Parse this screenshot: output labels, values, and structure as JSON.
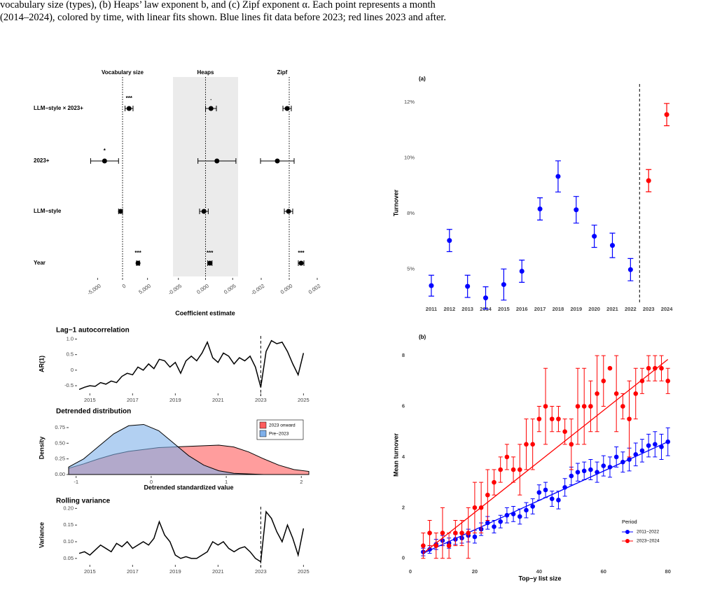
{
  "caption": [
    "vocabulary size (types), (b) Heaps’ law exponent b, and (c) Zipf exponent α. Each point represents a month",
    "(2014–2024), colored by time, with linear fits shown. Blue lines fit data before 2023; red lines 2023 and after."
  ],
  "chart_data": [
    {
      "type": "forest",
      "categories": [
        "LLM−style × 2023+",
        "2023+",
        "LLM−style",
        "Year"
      ],
      "xlabel": "Coefficient estimate",
      "panels": [
        {
          "title": "Vocabulary size",
          "shaded": false,
          "xlim": [
            -8000,
            8000
          ],
          "xticks": [
            {
              "value": -5000,
              "label": "-5,000"
            },
            0,
            {
              "value": 5000,
              "label": "5,000"
            }
          ],
          "values": [
            1300,
            -3600,
            -400,
            3100
          ],
          "errors": [
            800,
            2800,
            400,
            300
          ],
          "stars": [
            "***",
            "*",
            null,
            "***"
          ]
        },
        {
          "title": "Heaps",
          "shaded": true,
          "xlim": [
            -0.006,
            0.006
          ],
          "xticks": [
            -0.005,
            {
              "value": 0,
              "label": "0.000"
            },
            0.005
          ],
          "values": [
            0.001,
            0.0021,
            -0.0003,
            0.0008
          ],
          "errors": [
            0.001,
            0.0035,
            0.0008,
            0.0004
          ],
          "stars": [
            ".",
            null,
            null,
            "***"
          ]
        },
        {
          "title": "Zipf",
          "shaded": false,
          "xlim": [
            -0.0025,
            0.0015
          ],
          "xticks": [
            -0.002,
            {
              "value": 0,
              "label": "0.000"
            },
            0.002
          ],
          "values": [
            -0.00015,
            -0.00085,
            -5e-05,
            0.00085
          ],
          "errors": [
            0.0003,
            0.0012,
            0.0003,
            0.0002
          ],
          "stars": [
            null,
            null,
            null,
            "***"
          ]
        }
      ]
    },
    {
      "type": "line",
      "title": "Lag−1 autocorrelation",
      "ylabel": "AR(1)",
      "color": "#000000",
      "vline": 2023,
      "x": [
        2014.5,
        2014.75,
        2015,
        2015.25,
        2015.5,
        2015.75,
        2016,
        2016.25,
        2016.5,
        2016.75,
        2017,
        2017.25,
        2017.5,
        2017.75,
        2018,
        2018.25,
        2018.5,
        2018.75,
        2019,
        2019.25,
        2019.5,
        2019.75,
        2020,
        2020.25,
        2020.5,
        2020.75,
        2021,
        2021.25,
        2021.5,
        2021.75,
        2022,
        2022.25,
        2022.5,
        2022.75,
        2023,
        2023.25,
        2023.5,
        2023.75,
        2024,
        2024.25,
        2024.5,
        2024.75,
        2025
      ],
      "values": [
        -0.62,
        -0.55,
        -0.5,
        -0.52,
        -0.4,
        -0.45,
        -0.35,
        -0.4,
        -0.2,
        -0.1,
        -0.15,
        0.1,
        0,
        0.2,
        0.05,
        0.35,
        0.3,
        0.1,
        0.25,
        -0.1,
        0.3,
        0.45,
        0.3,
        0.55,
        0.9,
        0.4,
        0.25,
        0.55,
        0.45,
        0.2,
        0.4,
        0.3,
        0.45,
        0.1,
        -0.55,
        0.6,
        0.95,
        0.85,
        0.9,
        0.6,
        0.2,
        -0.15,
        0.55
      ],
      "xlim": [
        2014.4,
        2025.25
      ],
      "xticks": [
        2015,
        2017,
        2019,
        2021,
        2023,
        2025
      ],
      "ylim": [
        -0.7,
        1.1
      ],
      "yticks": [
        -0.5,
        0,
        0.5,
        {
          "value": 1,
          "label": "1.0"
        }
      ]
    },
    {
      "type": "density",
      "title": "Detrended distribution",
      "ylabel": "Density",
      "xlabel": "Detrended standardized value",
      "x": [
        -1.1,
        -0.9,
        -0.7,
        -0.5,
        -0.3,
        -0.1,
        0.1,
        0.3,
        0.5,
        0.7,
        0.9,
        1.1,
        1.3,
        1.5,
        1.7,
        1.9,
        2.1
      ],
      "series": [
        {
          "name": "2023 onward",
          "color": "#ff5c5c",
          "values": [
            0.1,
            0.17,
            0.25,
            0.32,
            0.37,
            0.4,
            0.43,
            0.44,
            0.45,
            0.46,
            0.47,
            0.44,
            0.36,
            0.25,
            0.15,
            0.08,
            0.05
          ]
        },
        {
          "name": "Pre−2023",
          "color": "#7fb0ea",
          "values": [
            0.12,
            0.25,
            0.45,
            0.65,
            0.78,
            0.8,
            0.7,
            0.5,
            0.3,
            0.15,
            0.06,
            0.02,
            0.01,
            0,
            0,
            0,
            0
          ]
        }
      ],
      "xlim": [
        -1.1,
        2.1
      ],
      "xticks": [
        -1,
        0,
        1,
        2
      ],
      "ylim": [
        0,
        0.85
      ],
      "yticks": [
        {
          "value": 0,
          "label": "0.00"
        },
        0.25,
        {
          "value": 0.5,
          "label": "0.50"
        },
        0.75
      ]
    },
    {
      "type": "line",
      "title": "Rolling variance",
      "ylabel": "Variance",
      "color": "#000000",
      "vline": 2023,
      "x": [
        2014.5,
        2014.75,
        2015,
        2015.25,
        2015.5,
        2015.75,
        2016,
        2016.25,
        2016.5,
        2016.75,
        2017,
        2017.25,
        2017.5,
        2017.75,
        2018,
        2018.25,
        2018.5,
        2018.75,
        2019,
        2019.25,
        2019.5,
        2019.75,
        2020,
        2020.25,
        2020.5,
        2020.75,
        2021,
        2021.25,
        2021.5,
        2021.75,
        2022,
        2022.25,
        2022.5,
        2022.75,
        2023,
        2023.25,
        2023.5,
        2023.75,
        2024,
        2024.25,
        2024.5,
        2024.75,
        2025
      ],
      "values": [
        0.065,
        0.07,
        0.06,
        0.075,
        0.09,
        0.08,
        0.07,
        0.095,
        0.085,
        0.1,
        0.08,
        0.09,
        0.1,
        0.09,
        0.11,
        0.16,
        0.12,
        0.1,
        0.06,
        0.05,
        0.055,
        0.05,
        0.05,
        0.06,
        0.07,
        0.1,
        0.09,
        0.1,
        0.08,
        0.07,
        0.08,
        0.085,
        0.07,
        0.05,
        0.04,
        0.19,
        0.17,
        0.13,
        0.1,
        0.15,
        0.11,
        0.06,
        0.14
      ],
      "xlim": [
        2014.4,
        2025.25
      ],
      "xticks": [
        2015,
        2017,
        2019,
        2021,
        2023,
        2025
      ],
      "ylim": [
        0.035,
        0.205
      ],
      "yticks": [
        0.05,
        {
          "value": 0.1,
          "label": "0.10"
        },
        0.15,
        {
          "value": 0.2,
          "label": "0.20"
        }
      ]
    },
    {
      "type": "errorbar",
      "title": "(a)",
      "ylabel": "Turnover",
      "categories": [
        "2011",
        "2012",
        "2013",
        "2014",
        "2015",
        "2016",
        "2017",
        "2018",
        "2019",
        "2020",
        "2021",
        "2022",
        "2023",
        "2024"
      ],
      "values": [
        4.25,
        6.28,
        4.22,
        3.7,
        4.3,
        4.9,
        7.7,
        9.16,
        7.66,
        6.47,
        6.06,
        4.97,
        8.97,
        11.94
      ],
      "errors": [
        0.47,
        0.5,
        0.5,
        0.5,
        0.7,
        0.5,
        0.5,
        0.7,
        0.6,
        0.5,
        0.55,
        0.5,
        0.5,
        0.5
      ],
      "colors": [
        "#0000ff",
        "#0000ff",
        "#0000ff",
        "#0000ff",
        "#0000ff",
        "#0000ff",
        "#0000ff",
        "#0000ff",
        "#0000ff",
        "#0000ff",
        "#0000ff",
        "#0000ff",
        "#ff0000",
        "#ff0000"
      ],
      "ylim": [
        3.5,
        13
      ],
      "yticks": [
        {
          "value": 5,
          "label": "5%"
        },
        {
          "value": 7.5,
          "label": "8%"
        },
        {
          "value": 10,
          "label": "10%"
        },
        {
          "value": 12.5,
          "label": "12%"
        }
      ]
    },
    {
      "type": "scatter",
      "title": "(b)",
      "ylabel": "Mean turnover",
      "xlabel": "Top−y list size",
      "legend_title": "Period",
      "x": [
        4,
        6,
        8,
        10,
        12,
        14,
        16,
        18,
        20,
        22,
        24,
        26,
        28,
        30,
        32,
        34,
        36,
        38,
        40,
        42,
        44,
        46,
        48,
        50,
        52,
        54,
        56,
        58,
        60,
        62,
        64,
        66,
        68,
        70,
        72,
        74,
        76,
        78,
        80
      ],
      "fit_x": [
        4,
        80
      ],
      "series": [
        {
          "name": "2011–2022",
          "color": "#0000ff",
          "fit": [
            0.2,
            4.6
          ],
          "values": [
            0.25,
            0.35,
            0.55,
            0.7,
            0.6,
            0.75,
            0.8,
            0.9,
            0.85,
            1.15,
            1.4,
            1.25,
            1.45,
            1.7,
            1.75,
            1.65,
            1.9,
            2.05,
            2.6,
            2.7,
            2.35,
            2.3,
            2.8,
            3.25,
            3.4,
            3.45,
            3.5,
            3.4,
            3.65,
            3.6,
            4.0,
            3.8,
            3.9,
            4.1,
            4.25,
            4.45,
            4.5,
            4.4,
            4.6
          ],
          "errors": [
            0.15,
            0.15,
            0.2,
            0.2,
            0.2,
            0.2,
            0.2,
            0.25,
            0.25,
            0.25,
            0.25,
            0.25,
            0.25,
            0.3,
            0.3,
            0.3,
            0.3,
            0.3,
            0.3,
            0.3,
            0.3,
            0.35,
            0.35,
            0.35,
            0.35,
            0.35,
            0.4,
            0.4,
            0.4,
            0.4,
            0.4,
            0.4,
            0.45,
            0.45,
            0.45,
            0.45,
            0.5,
            0.5,
            0.55
          ]
        },
        {
          "name": "2023–2024",
          "color": "#ff0000",
          "fit": [
            0.2,
            7.85
          ],
          "values": [
            0.5,
            1,
            0.5,
            1,
            0.5,
            1,
            1,
            1,
            2,
            2,
            2.5,
            3,
            3.5,
            4,
            3.5,
            3.5,
            4.5,
            4.5,
            5.5,
            6,
            5.5,
            5.5,
            5,
            4.5,
            6,
            6,
            6,
            6.5,
            7,
            7.5,
            6.5,
            6,
            5.5,
            6.5,
            7,
            7.5,
            7.5,
            7.5,
            7
          ],
          "errors": [
            0.5,
            0.5,
            0.5,
            1,
            0.5,
            0.5,
            0.5,
            1,
            1,
            1,
            1,
            0.5,
            0.5,
            0.5,
            0.5,
            1,
            1,
            1,
            0.5,
            1.5,
            0.5,
            0.5,
            0.5,
            1,
            1.5,
            1.5,
            1,
            1.5,
            1,
            0,
            1.5,
            0.5,
            1.5,
            1,
            0.5,
            0.5,
            0.5,
            0.5,
            0.5
          ]
        }
      ],
      "xlim": [
        -1.3,
        81.8
      ],
      "xticks": [
        0,
        20,
        40,
        60,
        80
      ],
      "ylim": [
        -0.2,
        8.5
      ],
      "yticks": [
        0,
        2,
        4,
        6,
        8
      ]
    }
  ]
}
